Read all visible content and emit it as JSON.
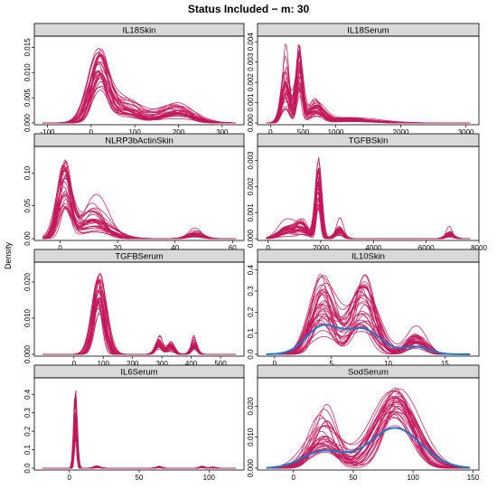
{
  "title": "Status Included − m:  30",
  "ylabel": "Density",
  "colors": {
    "imputed": "#C2185B",
    "observed": "#1E78C8",
    "strip": "#D9D9D9"
  },
  "chart_data": [
    {
      "type": "line",
      "title": "IL18Skin",
      "ylabel": "Density",
      "xlim": [
        -130,
        350
      ],
      "xticks": [
        -100,
        0,
        100,
        200,
        300
      ],
      "ylim": [
        0,
        0.0165
      ],
      "yticks": [
        0,
        0.005,
        0.01,
        0.015
      ],
      "yticklabels": [
        "0.000",
        "0.005",
        "0.010",
        "0.015"
      ],
      "components": [
        [
          18,
          20,
          0.55
        ],
        [
          75,
          40,
          0.25
        ],
        [
          195,
          35,
          0.2
        ]
      ],
      "series": [
        {
          "values": [
            0.0,
            0.0005,
            0.0053,
            0.0092,
            0.0063,
            0.0042,
            0.0027,
            0.0033,
            0.0034,
            0.0011,
            0.0
          ]
        }
      ],
      "series_count": 30,
      "peak_range": [
        0.0063,
        0.0148
      ]
    },
    {
      "type": "line",
      "title": "IL18Serum",
      "ylabel": "Density",
      "xlim": [
        -200,
        3200
      ],
      "xticks": [
        0,
        500,
        1000,
        2000,
        3000
      ],
      "ylim": [
        0,
        0.0041
      ],
      "yticks": [
        0,
        0.001,
        0.002,
        0.003,
        0.004
      ],
      "yticklabels": [
        "0.000",
        "0.001",
        "0.002",
        "0.003",
        "0.004"
      ],
      "components": [
        [
          230,
          60,
          0.3
        ],
        [
          440,
          50,
          0.35
        ],
        [
          700,
          110,
          0.2
        ],
        [
          1200,
          350,
          0.15
        ]
      ],
      "series": [
        {
          "values": [
            0.0,
            0.0013,
            0.0026,
            0.0015,
            0.0006,
            0.0004,
            0.0002,
            0.0,
            0.0
          ]
        }
      ],
      "series_count": 30,
      "peak_range": [
        0.0012,
        0.0039
      ]
    },
    {
      "type": "line",
      "title": "NLRP3bActinSkin",
      "ylabel": "Density",
      "xlim": [
        -9,
        64
      ],
      "xticks": [
        0,
        20,
        40,
        60
      ],
      "ylim": [
        0,
        0.135
      ],
      "yticks": [
        0,
        0.05,
        0.1
      ],
      "yticklabels": [
        "0.00",
        "0.05",
        "0.10"
      ],
      "components": [
        [
          1.5,
          2.2,
          0.55
        ],
        [
          12,
          5,
          0.4
        ],
        [
          47,
          2.5,
          0.05
        ]
      ],
      "series": [
        {
          "values": [
            0.0,
            0.077,
            0.046,
            0.038,
            0.014,
            0.0005,
            0.0,
            0.0
          ]
        }
      ],
      "series_count": 30,
      "peak_range": [
        0.045,
        0.125
      ]
    },
    {
      "type": "line",
      "title": "TGFBSkin",
      "ylabel": "Density",
      "xlim": [
        -400,
        8000
      ],
      "xticks": [
        0,
        2000,
        4000,
        6000,
        8000
      ],
      "ylim": [
        0,
        0.0034
      ],
      "yticks": [
        0,
        0.001,
        0.002,
        0.003
      ],
      "yticklabels": [
        "0.000",
        "0.001",
        "0.002",
        "0.003"
      ],
      "components": [
        [
          700,
          300,
          0.2
        ],
        [
          1300,
          250,
          0.2
        ],
        [
          1900,
          100,
          0.45
        ],
        [
          2700,
          150,
          0.1
        ],
        [
          6900,
          150,
          0.05
        ]
      ],
      "series": [
        {
          "values": [
            0.0,
            0.0003,
            0.0007,
            0.0018,
            0.0003,
            0.0,
            0.0,
            0.0,
            0.0001
          ]
        }
      ],
      "series_count": 30,
      "peak_range": [
        0.0011,
        0.0032
      ]
    },
    {
      "type": "line",
      "title": "TGFBSerum",
      "ylabel": "Density",
      "xlim": [
        -135,
        580
      ],
      "xticks": [
        0,
        100,
        200,
        300,
        400,
        500
      ],
      "ylim": [
        0,
        0.0245
      ],
      "yticks": [
        0,
        0.01,
        0.02
      ],
      "yticklabels": [
        "0.000",
        "0.010",
        "0.020"
      ],
      "components": [
        [
          85,
          20,
          0.8
        ],
        [
          290,
          12,
          0.08
        ],
        [
          330,
          12,
          0.06
        ],
        [
          410,
          10,
          0.06
        ]
      ],
      "series": [
        {
          "values": [
            0.0,
            0.0,
            0.016,
            0.0003,
            0.0026,
            0.0,
            0.0
          ]
        }
      ],
      "series_count": 30,
      "peak_range": [
        0.011,
        0.0225
      ]
    },
    {
      "type": "line",
      "title": "IL10Skin",
      "ylabel": "Density",
      "xlim": [
        -1.5,
        18
      ],
      "xticks": [
        0,
        5,
        10,
        15
      ],
      "ylim": [
        0,
        0.42
      ],
      "yticks": [
        0,
        0.1,
        0.2,
        0.3,
        0.4
      ],
      "yticklabels": [
        "0.0",
        "0.1",
        "0.2",
        "0.3",
        "0.4"
      ],
      "components": [
        [
          4.2,
          1.0,
          0.45
        ],
        [
          7.8,
          1.1,
          0.45
        ],
        [
          12.5,
          0.8,
          0.1
        ]
      ],
      "observed_series": {
        "values": [
          0.0,
          0.05,
          0.14,
          0.12,
          0.14,
          0.05,
          0.02,
          0.0
        ]
      },
      "series": [
        {
          "values": [
            0.0,
            0.02,
            0.16,
            0.06,
            0.24,
            0.01,
            0.04,
            0.0
          ]
        }
      ],
      "series_count": 30,
      "peak_range": [
        0.14,
        0.38
      ]
    },
    {
      "type": "line",
      "title": "IL6Serum",
      "ylabel": "Density",
      "xlim": [
        -25,
        125
      ],
      "xticks": [
        0,
        50,
        100
      ],
      "ylim": [
        0,
        0.47
      ],
      "yticks": [
        0,
        0.1,
        0.2,
        0.3,
        0.4
      ],
      "yticklabels": [
        "0.0",
        "0.1",
        "0.2",
        "0.3",
        "0.4"
      ],
      "components": [
        [
          4.5,
          1.0,
          0.88
        ],
        [
          20,
          2.5,
          0.04
        ],
        [
          64,
          2.0,
          0.03
        ],
        [
          95,
          2.0,
          0.03
        ],
        [
          103,
          2.0,
          0.02
        ]
      ],
      "series": [
        {
          "values": [
            0.0,
            0.25,
            0.006,
            0.0,
            0.005,
            0.0,
            0.004,
            0.0
          ]
        }
      ],
      "series_count": 30,
      "peak_range": [
        0.16,
        0.43
      ]
    },
    {
      "type": "line",
      "title": "SodSerum",
      "ylabel": "Density",
      "xlim": [
        -30,
        155
      ],
      "xticks": [
        0,
        50,
        100,
        150
      ],
      "ylim": [
        0,
        0.028
      ],
      "yticks": [
        0,
        0.01,
        0.02
      ],
      "yticklabels": [
        "0.000",
        "0.010",
        "0.020"
      ],
      "components": [
        [
          25,
          12,
          0.25
        ],
        [
          85,
          15,
          0.75
        ]
      ],
      "observed_series": {
        "values": [
          0.0,
          0.001,
          0.005,
          0.008,
          0.013,
          0.012,
          0.001,
          0.0
        ]
      },
      "series": [
        {
          "values": [
            0.0,
            0.002,
            0.007,
            0.009,
            0.016,
            0.011,
            0.0005,
            0.0
          ]
        }
      ],
      "series_count": 30,
      "peak_range": [
        0.013,
        0.026
      ]
    }
  ]
}
